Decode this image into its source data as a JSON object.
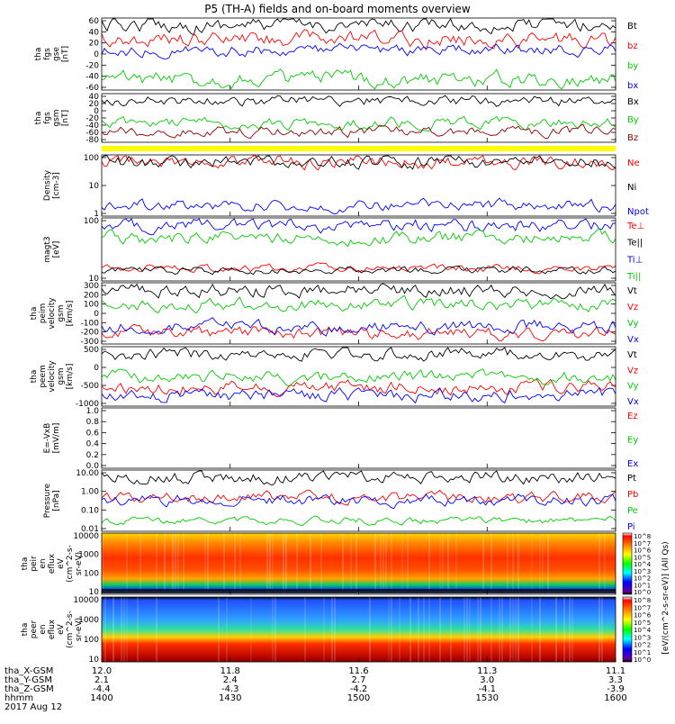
{
  "chart_data": {
    "type": "line",
    "title": "P5 (TH-A) fields and on-board moments overview",
    "date_label": "2017 Aug 12",
    "time_axis": {
      "ticks": [
        "1400",
        "1430",
        "1500",
        "1530",
        "1600"
      ],
      "row_labels": [
        "tha_X-GSM",
        "tha_Y-GSM",
        "tha_Z-GSM",
        "hhmm"
      ],
      "rows": [
        [
          "12.0",
          "11.8",
          "11.6",
          "11.3",
          "11.1"
        ],
        [
          "2.1",
          "2.4",
          "2.7",
          "3.0",
          "3.3"
        ],
        [
          "-4.4",
          "-4.3",
          "-4.2",
          "-4.1",
          "-3.9"
        ]
      ]
    },
    "panels": [
      {
        "id": "fgs-gse",
        "ylabel": "tha\nfgs\ngse\n[nT]",
        "yticks": [
          "60",
          "40",
          "20",
          "0",
          "-20",
          "-40",
          "-60"
        ],
        "series": [
          {
            "name": "Bt",
            "color": "#000000",
            "level": 38,
            "noise": 6
          },
          {
            "name": "bz",
            "color": "#ff0000",
            "level": 22,
            "noise": 7
          },
          {
            "name": "by",
            "color": "#00cc00",
            "level": -22,
            "noise": 7
          },
          {
            "name": "bx",
            "color": "#0000ff",
            "level": 10,
            "noise": 4
          }
        ]
      },
      {
        "id": "fgs-gsm",
        "ylabel": "tha\nfgs\ngsm\n[nT]",
        "yticks": [
          "40",
          "20",
          "0",
          "-20",
          "-40",
          "-60",
          "-80"
        ],
        "series": [
          {
            "name": "Bx",
            "color": "#000000",
            "level": 8,
            "noise": 5
          },
          {
            "name": "By",
            "color": "#00cc00",
            "level": -18,
            "noise": 5
          },
          {
            "name": "Bz",
            "color": "#8b0000",
            "level": -28,
            "noise": 7
          }
        ]
      },
      {
        "id": "density",
        "ylabel": "Density\n[cm-3]",
        "yticks": [
          "100",
          "10",
          "1"
        ],
        "series": [
          {
            "name": "Ne",
            "color": "#ff0000",
            "level": 8,
            "noise": 1.5
          },
          {
            "name": "Ni",
            "color": "#000000",
            "level": 8,
            "noise": 1.5
          },
          {
            "name": "Npot",
            "color": "#0000ff",
            "level": 4,
            "noise": 0.3
          }
        ]
      },
      {
        "id": "temperature",
        "ylabel": "magt3\n[eV]",
        "yticks": [
          "100",
          "10"
        ],
        "series": [
          {
            "name": "Te⊥",
            "color": "#ff0000",
            "level": 80,
            "noise": 15
          },
          {
            "name": "Te||",
            "color": "#000000",
            "level": 55,
            "noise": 10
          },
          {
            "name": "Ti⊥",
            "color": "#0000ff",
            "level": 750,
            "noise": 120
          },
          {
            "name": "Ti||",
            "color": "#00cc00",
            "level": 550,
            "noise": 90
          }
        ]
      },
      {
        "id": "peim-velocity",
        "ylabel": "tha\npeim\nvelocity\ngsm\n[km/s]",
        "yticks": [
          "300",
          "200",
          "100",
          "0",
          "-100",
          "-200",
          "-300"
        ],
        "series": [
          {
            "name": "Vt",
            "color": "#000000",
            "level": 170,
            "noise": 30
          },
          {
            "name": "Vz",
            "color": "#ff0000",
            "level": -100,
            "noise": 25
          },
          {
            "name": "Vy",
            "color": "#00cc00",
            "level": 80,
            "noise": 25
          },
          {
            "name": "Vx",
            "color": "#0000ff",
            "level": -60,
            "noise": 25
          }
        ]
      },
      {
        "id": "peem-velocity",
        "ylabel": "tha\npeem\nvelocity\ngsm\n[km/s]",
        "yticks": [
          "500",
          "0",
          "-500",
          "-1000"
        ],
        "series": [
          {
            "name": "Vt",
            "color": "#000000",
            "level": 150,
            "noise": 130
          },
          {
            "name": "Vz",
            "color": "#ff0000",
            "level": -20,
            "noise": 60
          },
          {
            "name": "Vy",
            "color": "#00cc00",
            "level": 30,
            "noise": 60
          },
          {
            "name": "Vx",
            "color": "#0000ff",
            "level": -60,
            "noise": 90
          }
        ]
      },
      {
        "id": "efield",
        "ylabel": "E=-VxB\n[mV/m]",
        "yticks": [
          "1.0",
          "0.8",
          "0.6",
          "0.4",
          "0.2",
          "0.0"
        ],
        "series": [
          {
            "name": "Ez",
            "color": "#ff0000"
          },
          {
            "name": "Ey",
            "color": "#00cc00"
          },
          {
            "name": "Ex",
            "color": "#0000ff"
          }
        ]
      },
      {
        "id": "pressure",
        "ylabel": "Pressure\n[nPa]",
        "yticks": [
          "10.00",
          "1.00",
          "0.10",
          "0.01"
        ],
        "series": [
          {
            "name": "Pt",
            "color": "#000000",
            "level": 0.9,
            "noise": 0.08
          },
          {
            "name": "Pb",
            "color": "#ff0000",
            "level": 0.5,
            "noise": 0.06
          },
          {
            "name": "Pe",
            "color": "#00cc00",
            "level": 0.05,
            "noise": 0.012
          },
          {
            "name": "Pi",
            "color": "#0000ff",
            "level": 0.45,
            "noise": 0.06
          }
        ]
      },
      {
        "id": "peir-spectrogram",
        "ylabel": "tha\npeir\nen\neflux\neV\n(cm^2-s-\nsr-eV)",
        "yticks": [
          "10000",
          "1000",
          "100",
          "10"
        ]
      },
      {
        "id": "peer-spectrogram",
        "ylabel": "tha\npeer\nen\neflux\neV\n(cm^2-s-\nsr-eV)",
        "yticks": [
          "10000",
          "1000",
          "100",
          "10"
        ]
      }
    ],
    "colorbar": {
      "label": "[eV/(cm^2-s-sr-eV)] (All Qs)",
      "ticks": [
        "10^8",
        "10^7",
        "10^6",
        "10^5",
        "10^4",
        "10^3",
        "10^2",
        "10^1",
        "10^0"
      ]
    }
  }
}
